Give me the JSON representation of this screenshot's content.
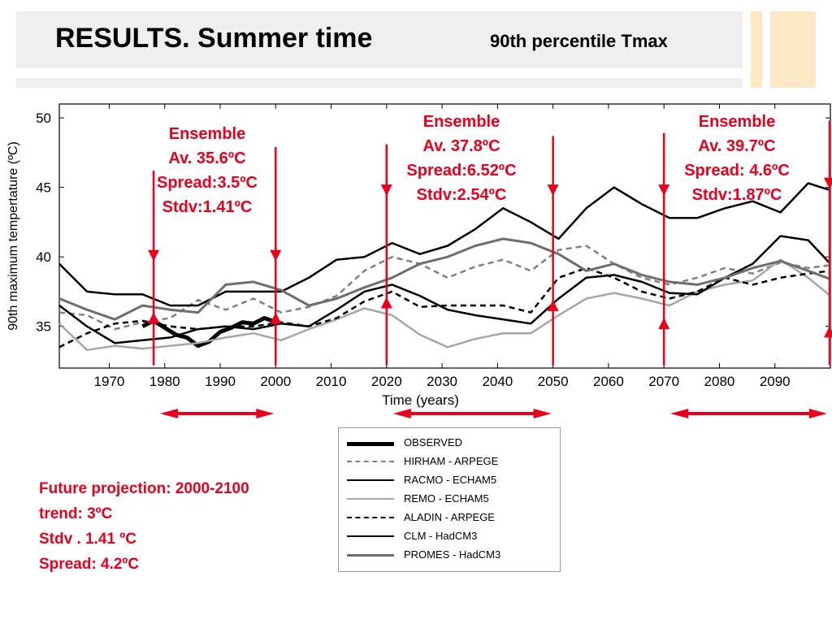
{
  "slide": {
    "title": "RESULTS. Summer time",
    "subtitle": "90th percentile Tmax"
  },
  "colors": {
    "accent_red": "#e8001c",
    "deco_orange": "#fce7c6",
    "band_gray": "#efefef"
  },
  "summary": [
    "Future projection: 2000-2100",
    "trend: 3ºC",
    "Stdv . 1.41 ºC",
    "Spread: 4.2ºC"
  ],
  "ensembles": [
    {
      "lines": [
        "Ensemble",
        "Av. 35.6ºC",
        "Spread:3.5ºC",
        "Stdv:1.41ºC"
      ],
      "period": [
        1978,
        2000
      ]
    },
    {
      "lines": [
        "Ensemble",
        "Av. 37.8ºC",
        "Spread:6.52ºC",
        "Stdv:2.54ºC"
      ],
      "period": [
        2020,
        2050
      ]
    },
    {
      "lines": [
        "Ensemble",
        "Av. 39.7ºC",
        "Spread: 4.6ºC",
        "Stdv:1.87ºC"
      ],
      "period": [
        2070,
        2100
      ]
    }
  ],
  "chart_data": {
    "type": "line",
    "title": "",
    "xlabel": "Time (years)",
    "ylabel": "90th maximum tempertature (ºC)",
    "xlim": [
      1961,
      2100
    ],
    "ylim": [
      32,
      51
    ],
    "xticks": [
      1970,
      1980,
      1990,
      2000,
      2010,
      2020,
      2030,
      2040,
      2050,
      2060,
      2070,
      2080,
      2090
    ],
    "yticks": [
      35,
      40,
      45,
      50
    ],
    "period_markers": [
      1978,
      2000,
      2020,
      2050,
      2070,
      2100
    ],
    "series": [
      {
        "name": "OBSERVED",
        "color": "#000000",
        "width": 5,
        "dash": "",
        "x": [
          1976,
          1978,
          1980,
          1982,
          1984,
          1986,
          1988,
          1990,
          1992,
          1994,
          1996,
          1998,
          2000
        ],
        "y": [
          35.0,
          35.4,
          34.9,
          34.4,
          34.2,
          33.6,
          33.9,
          34.6,
          34.9,
          35.3,
          35.2,
          35.6,
          35.3
        ]
      },
      {
        "name": "HIRHAM - ARPEGE",
        "color": "#808080",
        "width": 2.5,
        "dash": "7,5",
        "x": [
          1961,
          1966,
          1971,
          1976,
          1981,
          1986,
          1991,
          1996,
          2001,
          2006,
          2011,
          2016,
          2021,
          2026,
          2031,
          2036,
          2041,
          2046,
          2051,
          2056,
          2061,
          2066,
          2071,
          2076,
          2081,
          2086,
          2091,
          2096,
          2100
        ],
        "y": [
          36.0,
          35.8,
          34.8,
          35.3,
          35.6,
          36.9,
          36.2,
          37.0,
          36.0,
          36.4,
          37.2,
          39.0,
          40.0,
          39.5,
          38.5,
          39.3,
          39.8,
          39.0,
          40.5,
          40.8,
          39.5,
          38.5,
          38.0,
          38.5,
          39.2,
          38.8,
          39.6,
          39.2,
          39.4
        ]
      },
      {
        "name": "RACMO - ECHAM5",
        "color": "#000000",
        "width": 2.5,
        "dash": "",
        "x": [
          1961,
          1966,
          1971,
          1976,
          1981,
          1986,
          1991,
          1996,
          2001,
          2006,
          2011,
          2016,
          2021,
          2026,
          2031,
          2036,
          2041,
          2046,
          2051,
          2056,
          2061,
          2066,
          2071,
          2076,
          2081,
          2086,
          2091,
          2096,
          2100
        ],
        "y": [
          39.5,
          37.5,
          37.3,
          37.3,
          36.5,
          36.5,
          37.5,
          37.5,
          37.5,
          38.5,
          39.8,
          40.0,
          41.0,
          40.2,
          40.8,
          42.0,
          43.5,
          42.5,
          41.3,
          43.5,
          45.0,
          43.8,
          42.8,
          42.8,
          43.5,
          44.0,
          43.2,
          45.3,
          44.8
        ]
      },
      {
        "name": "REMO - ECHAM5",
        "color": "#a6a6a6",
        "width": 2.5,
        "dash": "",
        "x": [
          1961,
          1966,
          1971,
          1976,
          1981,
          1986,
          1991,
          1996,
          2001,
          2006,
          2011,
          2016,
          2021,
          2026,
          2031,
          2036,
          2041,
          2046,
          2051,
          2056,
          2061,
          2066,
          2071,
          2076,
          2081,
          2086,
          2091,
          2096,
          2100
        ],
        "y": [
          35.2,
          33.3,
          33.6,
          33.4,
          33.6,
          33.8,
          34.2,
          34.5,
          34.0,
          34.8,
          35.5,
          36.3,
          35.8,
          34.4,
          33.5,
          34.1,
          34.5,
          34.5,
          35.8,
          37.0,
          37.4,
          37.0,
          36.5,
          37.5,
          38.0,
          38.3,
          39.8,
          38.5,
          37.2
        ]
      },
      {
        "name": "ALADIN - ARPEGE",
        "color": "#000000",
        "width": 2.5,
        "dash": "7,5",
        "x": [
          1961,
          1966,
          1971,
          1976,
          1981,
          1986,
          1991,
          1996,
          2001,
          2006,
          2011,
          2016,
          2021,
          2026,
          2031,
          2036,
          2041,
          2046,
          2051,
          2056,
          2061,
          2066,
          2071,
          2076,
          2081,
          2086,
          2091,
          2096,
          2100
        ],
        "y": [
          33.5,
          34.5,
          35.2,
          35.4,
          35.0,
          34.8,
          35.0,
          35.0,
          35.3,
          35.0,
          35.6,
          36.8,
          37.5,
          36.4,
          36.5,
          36.5,
          36.5,
          36.0,
          38.5,
          39.2,
          38.5,
          37.5,
          37.0,
          37.5,
          38.5,
          38.0,
          38.5,
          38.8,
          39.0
        ]
      },
      {
        "name": "CLM - HadCM3",
        "color": "#000000",
        "width": 2.5,
        "dash": "",
        "x": [
          1961,
          1966,
          1971,
          1976,
          1981,
          1986,
          1991,
          1996,
          2001,
          2006,
          2011,
          2016,
          2021,
          2026,
          2031,
          2036,
          2041,
          2046,
          2051,
          2056,
          2061,
          2066,
          2071,
          2076,
          2081,
          2086,
          2091,
          2096,
          2100
        ],
        "y": [
          36.5,
          35.0,
          33.8,
          34.0,
          34.2,
          34.8,
          35.0,
          34.8,
          35.2,
          35.0,
          36.2,
          37.5,
          38.0,
          37.2,
          36.2,
          35.8,
          35.5,
          35.2,
          37.0,
          38.5,
          38.7,
          38.2,
          37.4,
          37.3,
          38.5,
          39.5,
          41.5,
          41.2,
          39.5
        ]
      },
      {
        "name": "PROMES - HadCM3",
        "color": "#6e6e6e",
        "width": 3,
        "dash": "",
        "x": [
          1961,
          1966,
          1971,
          1976,
          1981,
          1986,
          1991,
          1996,
          2001,
          2006,
          2011,
          2016,
          2021,
          2026,
          2031,
          2036,
          2041,
          2046,
          2051,
          2056,
          2061,
          2066,
          2071,
          2076,
          2081,
          2086,
          2091,
          2096,
          2100
        ],
        "y": [
          37.0,
          36.2,
          35.5,
          36.5,
          36.2,
          36.0,
          38.0,
          38.2,
          37.6,
          36.5,
          37.0,
          37.8,
          38.5,
          39.5,
          40.0,
          40.8,
          41.3,
          41.0,
          40.2,
          39.0,
          39.5,
          38.7,
          38.2,
          38.0,
          38.5,
          39.2,
          39.7,
          39.0,
          38.4
        ]
      }
    ]
  }
}
